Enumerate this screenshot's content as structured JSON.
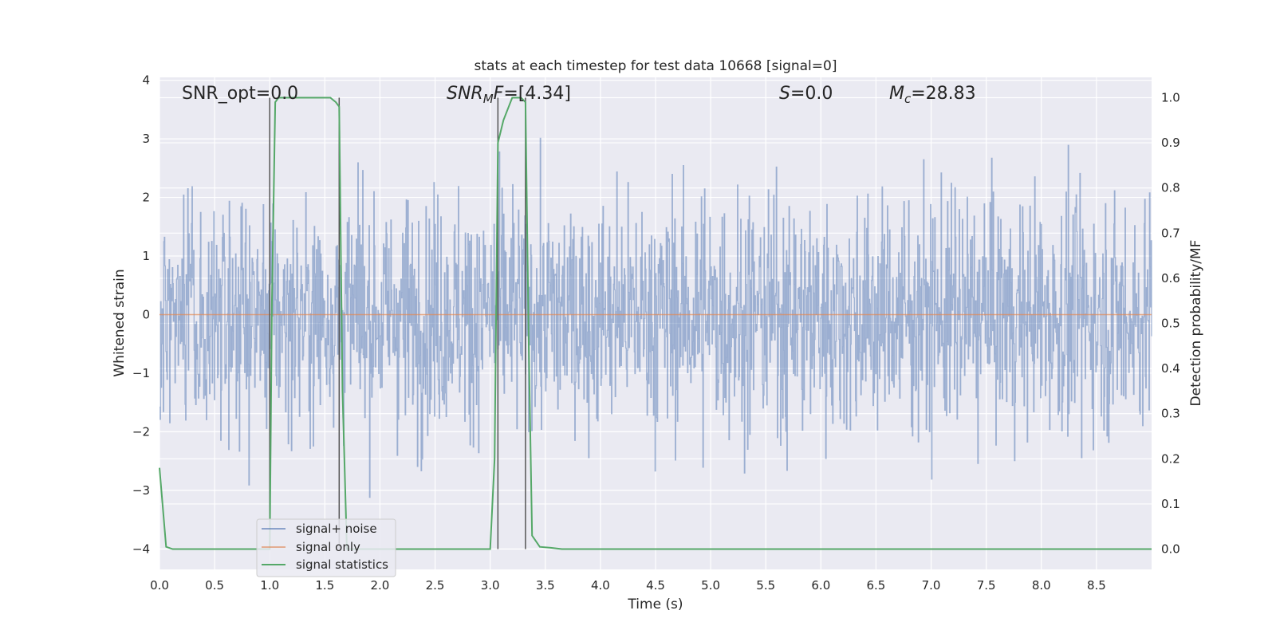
{
  "chart_data": {
    "type": "line",
    "title": "stats at each timestep for test data 10668 [signal=0]",
    "xlabel": "Time (s)",
    "ylabel_left": "Whitened strain",
    "ylabel_right": "Detection probability/MF",
    "xlim": [
      0.0,
      9.0
    ],
    "ylim_left": [
      -4.35,
      4.05
    ],
    "ylim_right": [
      -0.045,
      1.045
    ],
    "x_ticks": [
      "0.0",
      "0.5",
      "1.0",
      "1.5",
      "2.0",
      "2.5",
      "3.0",
      "3.5",
      "4.0",
      "4.5",
      "5.0",
      "5.5",
      "6.0",
      "6.5",
      "7.0",
      "7.5",
      "8.0",
      "8.5"
    ],
    "y_ticks_left": [
      "4",
      "3",
      "2",
      "1",
      "0",
      "−1",
      "−2",
      "−3",
      "−4"
    ],
    "y_ticks_right": [
      "1.0",
      "0.9",
      "0.8",
      "0.7",
      "0.6",
      "0.5",
      "0.4",
      "0.3",
      "0.2",
      "0.1",
      "0.0"
    ],
    "grid": true,
    "legend_placement": "lower-left",
    "annotations": {
      "snr_opt": "SNR_opt=0.0",
      "snr_mf_sym": "SNR",
      "snr_mf_sub": "M",
      "snr_mf_sym2": "F",
      "snr_mf_val": "=[4.34]",
      "s_sym": "S",
      "s_val": "=0.0",
      "mc_sym": "M",
      "mc_sub": "c",
      "mc_val": "=28.83"
    },
    "vlines_x": [
      1.0,
      1.63,
      3.07,
      3.32
    ],
    "series": [
      {
        "name": "signal+ noise",
        "color": "#4c72b0",
        "axis": "left",
        "note_values": "noise-like samples roughly within [-4, 3.7]",
        "x_range": [
          0.0,
          9.0
        ]
      },
      {
        "name": "signal only",
        "color": "#dd8452",
        "axis": "left",
        "x": [
          0.0,
          9.0
        ],
        "values": [
          0.0,
          0.0
        ]
      },
      {
        "name": "signal statistics",
        "color": "#55a868",
        "axis": "right",
        "x": [
          0.0,
          0.06,
          0.12,
          0.5,
          0.98,
          1.0,
          1.02,
          1.05,
          1.08,
          1.15,
          1.3,
          1.45,
          1.55,
          1.6,
          1.63,
          1.66,
          1.7,
          1.75,
          2.5,
          3.0,
          3.04,
          3.07,
          3.12,
          3.2,
          3.28,
          3.32,
          3.35,
          3.38,
          3.45,
          3.55,
          3.65,
          4.5,
          6.0,
          7.5,
          9.0
        ],
        "values": [
          0.18,
          0.005,
          0.0,
          0.0,
          0.0,
          0.0,
          0.55,
          0.99,
          1.0,
          1.0,
          1.0,
          1.0,
          1.0,
          0.99,
          0.98,
          0.35,
          0.0,
          0.0,
          0.0,
          0.0,
          0.2,
          0.9,
          0.95,
          1.0,
          1.0,
          0.99,
          0.45,
          0.03,
          0.005,
          0.003,
          0.0,
          0.0,
          0.0,
          0.0,
          0.0
        ]
      }
    ]
  },
  "colors": {
    "plot_bg": "#eaeaf2",
    "grid": "#ffffff",
    "vline": "#555555",
    "axis_text": "#262626"
  }
}
